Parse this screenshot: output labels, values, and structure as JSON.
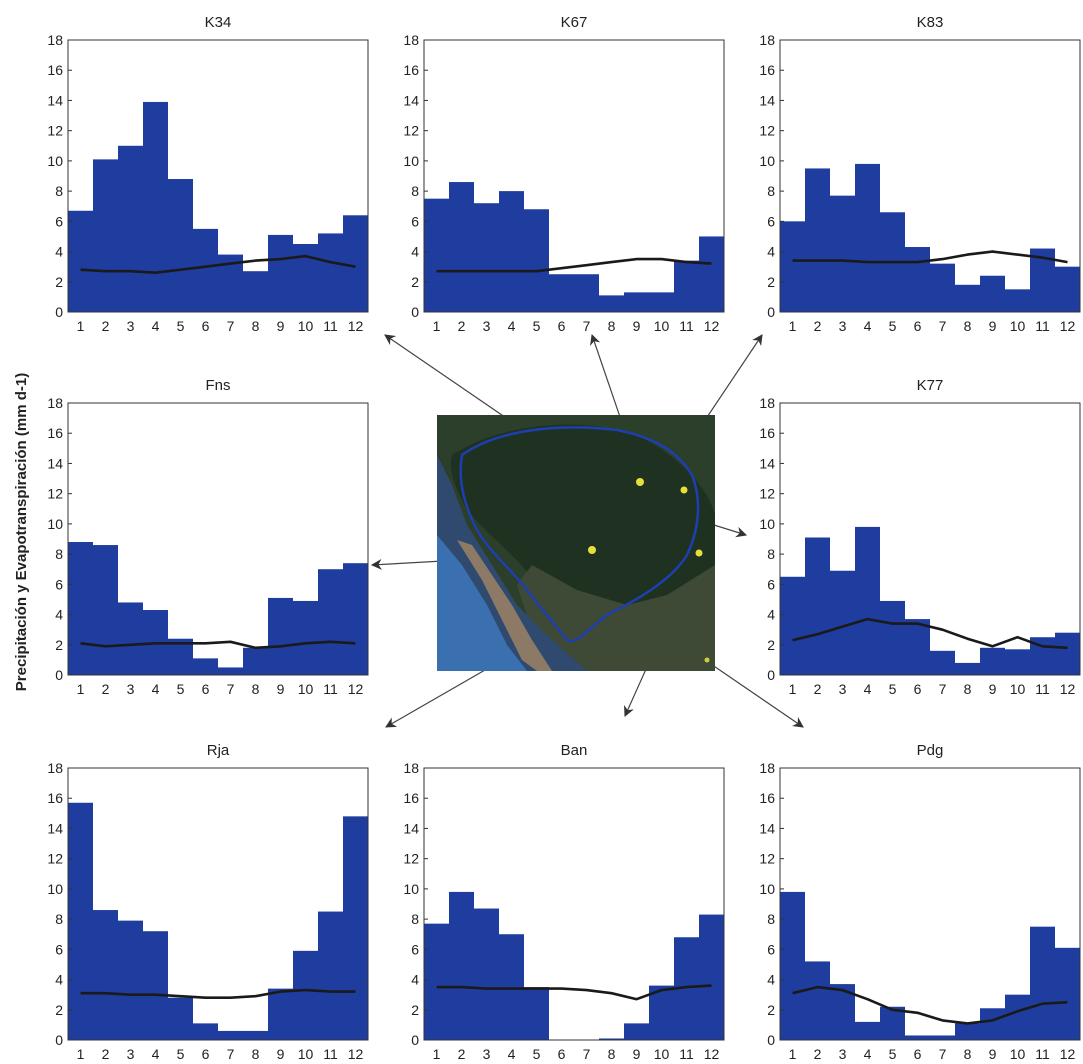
{
  "ylabel": "Precipitación y Evapotranspiración (mm d-1)",
  "colors": {
    "bar": "#1f3d9e",
    "et_line": "#1a1a1a",
    "axis": "#333333",
    "arrow": "#444444"
  },
  "chart_data": [
    {
      "type": "bar",
      "title": "K34",
      "categories": [
        "1",
        "2",
        "3",
        "4",
        "5",
        "6",
        "7",
        "8",
        "9",
        "10",
        "11",
        "12"
      ],
      "ylim": [
        0,
        18
      ],
      "yticks": [
        0,
        2,
        4,
        6,
        8,
        10,
        12,
        14,
        16,
        18
      ],
      "series": [
        {
          "type": "bar",
          "values": [
            6.7,
            10.1,
            11.0,
            13.9,
            8.8,
            5.5,
            3.8,
            2.7,
            5.1,
            4.5,
            5.2,
            6.4
          ]
        },
        {
          "type": "line",
          "values": [
            2.8,
            2.7,
            2.7,
            2.6,
            2.8,
            3.0,
            3.2,
            3.4,
            3.5,
            3.7,
            3.3,
            3.0
          ]
        }
      ]
    },
    {
      "type": "bar",
      "title": "K67",
      "categories": [
        "1",
        "2",
        "3",
        "4",
        "5",
        "6",
        "7",
        "8",
        "9",
        "10",
        "11",
        "12"
      ],
      "ylim": [
        0,
        18
      ],
      "yticks": [
        0,
        2,
        4,
        6,
        8,
        10,
        12,
        14,
        16,
        18
      ],
      "series": [
        {
          "type": "bar",
          "values": [
            7.5,
            8.6,
            7.2,
            8.0,
            6.8,
            2.5,
            2.5,
            1.1,
            1.3,
            1.3,
            3.4,
            5.0
          ]
        },
        {
          "type": "line",
          "values": [
            2.7,
            2.7,
            2.7,
            2.7,
            2.7,
            2.9,
            3.1,
            3.3,
            3.5,
            3.5,
            3.3,
            3.2
          ]
        }
      ]
    },
    {
      "type": "bar",
      "title": "K83",
      "categories": [
        "1",
        "2",
        "3",
        "4",
        "5",
        "6",
        "7",
        "8",
        "9",
        "10",
        "11",
        "12"
      ],
      "ylim": [
        0,
        18
      ],
      "yticks": [
        0,
        2,
        4,
        6,
        8,
        10,
        12,
        14,
        16,
        18
      ],
      "series": [
        {
          "type": "bar",
          "values": [
            6.0,
            9.5,
            7.7,
            9.8,
            6.6,
            4.3,
            3.2,
            1.8,
            2.4,
            1.5,
            4.2,
            3.0
          ]
        },
        {
          "type": "line",
          "values": [
            3.4,
            3.4,
            3.4,
            3.3,
            3.3,
            3.3,
            3.5,
            3.8,
            4.0,
            3.8,
            3.6,
            3.3
          ]
        }
      ]
    },
    {
      "type": "bar",
      "title": "Fns",
      "categories": [
        "1",
        "2",
        "3",
        "4",
        "5",
        "6",
        "7",
        "8",
        "9",
        "10",
        "11",
        "12"
      ],
      "ylim": [
        0,
        18
      ],
      "yticks": [
        0,
        2,
        4,
        6,
        8,
        10,
        12,
        14,
        16,
        18
      ],
      "series": [
        {
          "type": "bar",
          "values": [
            8.8,
            8.6,
            4.8,
            4.3,
            2.4,
            1.1,
            0.5,
            1.8,
            5.1,
            4.9,
            7.0,
            7.4
          ]
        },
        {
          "type": "line",
          "values": [
            2.1,
            1.9,
            2.0,
            2.1,
            2.1,
            2.1,
            2.2,
            1.8,
            1.9,
            2.1,
            2.2,
            2.1
          ]
        }
      ]
    },
    {
      "type": "bar",
      "title": "K77",
      "categories": [
        "1",
        "2",
        "3",
        "4",
        "5",
        "6",
        "7",
        "8",
        "9",
        "10",
        "11",
        "12"
      ],
      "ylim": [
        0,
        18
      ],
      "yticks": [
        0,
        2,
        4,
        6,
        8,
        10,
        12,
        14,
        16,
        18
      ],
      "series": [
        {
          "type": "bar",
          "values": [
            6.5,
            9.1,
            6.9,
            9.8,
            4.9,
            3.7,
            1.6,
            0.8,
            1.8,
            1.7,
            2.5,
            2.8
          ]
        },
        {
          "type": "line",
          "values": [
            2.3,
            2.7,
            3.2,
            3.7,
            3.4,
            3.4,
            3.0,
            2.4,
            1.9,
            2.5,
            1.9,
            1.8
          ]
        }
      ]
    },
    {
      "type": "bar",
      "title": "Rja",
      "categories": [
        "1",
        "2",
        "3",
        "4",
        "5",
        "6",
        "7",
        "8",
        "9",
        "10",
        "11",
        "12"
      ],
      "ylim": [
        0,
        18
      ],
      "yticks": [
        0,
        2,
        4,
        6,
        8,
        10,
        12,
        14,
        16,
        18
      ],
      "series": [
        {
          "type": "bar",
          "values": [
            15.7,
            8.6,
            7.9,
            7.2,
            2.8,
            1.1,
            0.6,
            0.6,
            3.4,
            5.9,
            8.5,
            14.8
          ]
        },
        {
          "type": "line",
          "values": [
            3.1,
            3.1,
            3.0,
            3.0,
            2.9,
            2.8,
            2.8,
            2.9,
            3.2,
            3.3,
            3.2,
            3.2
          ]
        }
      ]
    },
    {
      "type": "bar",
      "title": "Ban",
      "categories": [
        "1",
        "2",
        "3",
        "4",
        "5",
        "6",
        "7",
        "8",
        "9",
        "10",
        "11",
        "12"
      ],
      "ylim": [
        0,
        18
      ],
      "yticks": [
        0,
        2,
        4,
        6,
        8,
        10,
        12,
        14,
        16,
        18
      ],
      "series": [
        {
          "type": "bar",
          "values": [
            7.7,
            9.8,
            8.7,
            7.0,
            3.5,
            0.0,
            0.0,
            0.1,
            1.1,
            3.6,
            6.8,
            8.3
          ]
        },
        {
          "type": "line",
          "values": [
            3.5,
            3.5,
            3.4,
            3.4,
            3.4,
            3.4,
            3.3,
            3.1,
            2.7,
            3.3,
            3.5,
            3.6
          ]
        }
      ]
    },
    {
      "type": "bar",
      "title": "Pdg",
      "categories": [
        "1",
        "2",
        "3",
        "4",
        "5",
        "6",
        "7",
        "8",
        "9",
        "10",
        "11",
        "12"
      ],
      "ylim": [
        0,
        18
      ],
      "yticks": [
        0,
        2,
        4,
        6,
        8,
        10,
        12,
        14,
        16,
        18
      ],
      "series": [
        {
          "type": "bar",
          "values": [
            9.8,
            5.2,
            3.7,
            1.2,
            2.2,
            0.3,
            0.3,
            1.1,
            2.1,
            3.0,
            7.5,
            6.1
          ]
        },
        {
          "type": "line",
          "values": [
            3.1,
            3.5,
            3.3,
            2.7,
            2.0,
            1.8,
            1.3,
            1.1,
            1.3,
            1.9,
            2.4,
            2.5
          ]
        }
      ]
    }
  ]
}
